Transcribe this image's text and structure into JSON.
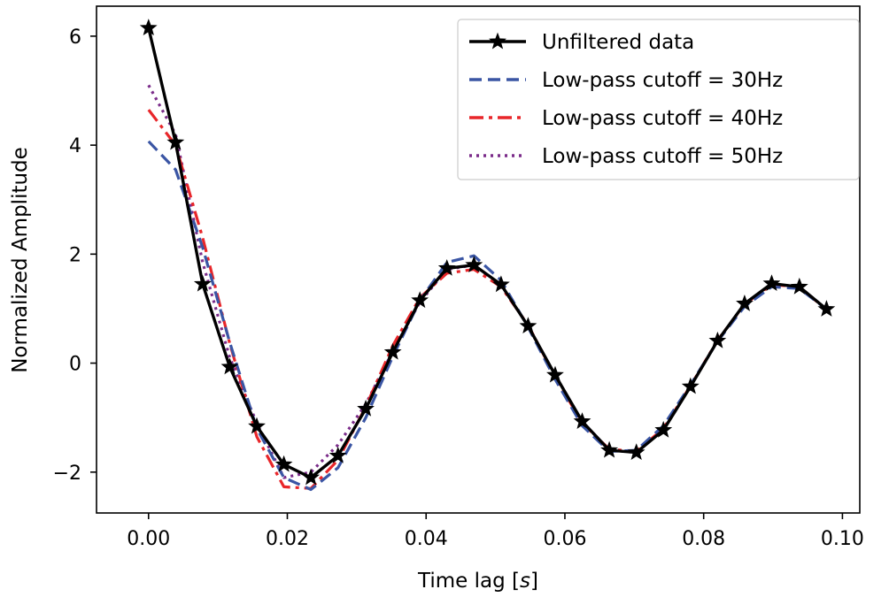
{
  "chart_data": {
    "type": "line",
    "title": "",
    "xlabel": "Time lag [",
    "xlabel_unit": "s",
    "xlabel_end": "]",
    "ylabel": "Normalized Amplitude",
    "xlim": [
      -0.0075,
      0.1025
    ],
    "ylim": [
      -2.75,
      6.55
    ],
    "xticks": [
      0.0,
      0.02,
      0.04,
      0.06,
      0.08,
      0.1
    ],
    "xtick_labels": [
      "0.00",
      "0.02",
      "0.04",
      "0.06",
      "0.08",
      "0.10"
    ],
    "yticks": [
      -2,
      0,
      2,
      4,
      6
    ],
    "ytick_labels": [
      "−2",
      "0",
      "2",
      "4",
      "6"
    ],
    "grid": false,
    "legend_position": "top-right",
    "x": [
      0.0,
      0.0039,
      0.0078,
      0.0117,
      0.0156,
      0.0195,
      0.0234,
      0.0273,
      0.0313,
      0.0352,
      0.0391,
      0.043,
      0.0469,
      0.0508,
      0.0547,
      0.0586,
      0.0625,
      0.0664,
      0.0703,
      0.0742,
      0.0781,
      0.082,
      0.0859,
      0.0898,
      0.0938,
      0.0977
    ],
    "series": [
      {
        "name": "Unfiltered data",
        "color": "#000000",
        "style": "solid",
        "marker": "star",
        "values": [
          6.15,
          4.05,
          1.45,
          -0.07,
          -1.16,
          -1.86,
          -2.1,
          -1.7,
          -0.84,
          0.2,
          1.15,
          1.74,
          1.8,
          1.44,
          0.68,
          -0.22,
          -1.07,
          -1.6,
          -1.64,
          -1.23,
          -0.43,
          0.41,
          1.09,
          1.46,
          1.4,
          0.99
        ]
      },
      {
        "name": "Low-pass cutoff = 30Hz",
        "color": "#3a55a4",
        "style": "dashed",
        "marker": "none",
        "values": [
          4.07,
          3.55,
          2.12,
          0.38,
          -1.2,
          -2.1,
          -2.32,
          -1.92,
          -1.0,
          0.12,
          1.15,
          1.85,
          1.97,
          1.52,
          0.66,
          -0.3,
          -1.15,
          -1.62,
          -1.6,
          -1.15,
          -0.4,
          0.4,
          1.04,
          1.4,
          1.37,
          0.99
        ]
      },
      {
        "name": "Low-pass cutoff = 40Hz",
        "color": "#e8262a",
        "style": "dashdot",
        "marker": "none",
        "values": [
          4.65,
          4.0,
          2.3,
          0.36,
          -1.35,
          -2.27,
          -2.3,
          -1.78,
          -0.8,
          0.32,
          1.2,
          1.65,
          1.72,
          1.4,
          0.7,
          -0.25,
          -1.1,
          -1.58,
          -1.62,
          -1.2,
          -0.42,
          0.42,
          1.08,
          1.44,
          1.4,
          0.98
        ]
      },
      {
        "name": "Low-pass cutoff = 50Hz",
        "color": "#7b2c8a",
        "style": "dotted",
        "marker": "none",
        "values": [
          5.1,
          4.2,
          1.85,
          0.1,
          -1.1,
          -2.1,
          -2.0,
          -1.5,
          -0.75,
          0.22,
          1.12,
          1.72,
          1.8,
          1.44,
          0.68,
          -0.22,
          -1.07,
          -1.6,
          -1.64,
          -1.22,
          -0.43,
          0.41,
          1.08,
          1.45,
          1.4,
          0.99
        ]
      }
    ]
  }
}
